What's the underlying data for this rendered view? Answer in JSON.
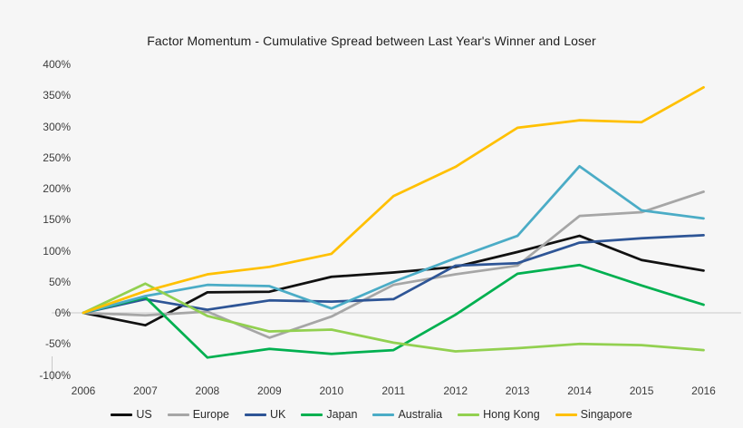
{
  "title": "Factor Momentum - Cumulative Spread between Last Year's Winner and Loser",
  "chart_data": {
    "type": "line",
    "x": [
      2006,
      2007,
      2008,
      2009,
      2010,
      2011,
      2012,
      2013,
      2014,
      2015,
      2016
    ],
    "series": [
      {
        "name": "US",
        "color": "#111111",
        "values": [
          0,
          -20,
          33,
          34,
          58,
          65,
          74,
          98,
          124,
          85,
          68
        ]
      },
      {
        "name": "Europe",
        "color": "#a6a6a6",
        "values": [
          0,
          -4,
          2,
          -40,
          -6,
          45,
          62,
          76,
          156,
          162,
          195
        ]
      },
      {
        "name": "UK",
        "color": "#2e5596",
        "values": [
          0,
          22,
          5,
          20,
          18,
          22,
          76,
          80,
          113,
          120,
          125
        ]
      },
      {
        "name": "Japan",
        "color": "#00b050",
        "values": [
          0,
          25,
          -72,
          -58,
          -66,
          -60,
          -3,
          63,
          77,
          44,
          13
        ]
      },
      {
        "name": "Australia",
        "color": "#4bacc6",
        "values": [
          0,
          27,
          45,
          43,
          7,
          50,
          88,
          124,
          236,
          165,
          152
        ]
      },
      {
        "name": "Hong Kong",
        "color": "#92d050",
        "values": [
          0,
          47,
          -5,
          -30,
          -27,
          -48,
          -62,
          -57,
          -50,
          -52,
          -60
        ]
      },
      {
        "name": "Singapore",
        "color": "#ffc000",
        "values": [
          0,
          35,
          62,
          74,
          95,
          188,
          235,
          298,
          310,
          307,
          363
        ]
      }
    ],
    "y_ticks": [
      "400%",
      "350%",
      "300%",
      "250%",
      "200%",
      "150%",
      "100%",
      "50%",
      "0%",
      "-50%",
      "-100%"
    ],
    "ylim": [
      -100,
      400
    ],
    "xlabel": "",
    "ylabel": "",
    "grid": "zero-line-only",
    "legend_position": "bottom",
    "background_color": "#f6f6f6",
    "zero_line_color": "#c9c9c9"
  }
}
